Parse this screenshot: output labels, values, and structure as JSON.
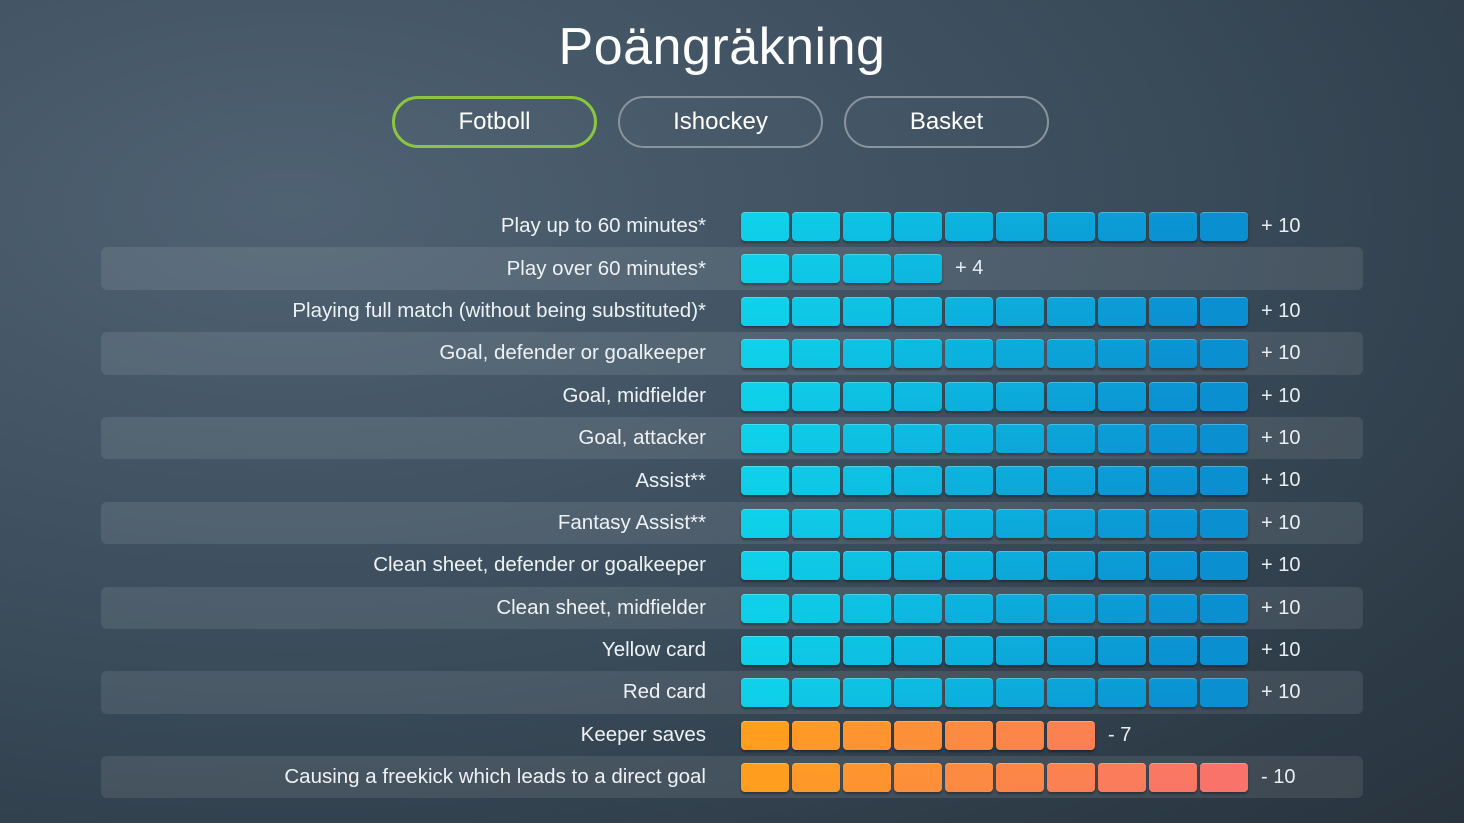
{
  "title": "Poängräkning",
  "tabs": [
    {
      "label": "Fotboll",
      "active": true
    },
    {
      "label": "Ishockey",
      "active": false
    },
    {
      "label": "Basket",
      "active": false
    }
  ],
  "colors": {
    "active_tab_border": "#8cc63f",
    "positive_start": "#0fd2ea",
    "positive_end": "#0a8fd1",
    "negative_start": "#ff9f1c",
    "negative_end": "#f9736a"
  },
  "max_segments": 10,
  "rows": [
    {
      "label": "Play up to 60 minutes*",
      "points": 10,
      "value_text": "+ 10"
    },
    {
      "label": "Play over 60 minutes*",
      "points": 4,
      "value_text": "+ 4"
    },
    {
      "label": "Playing full match (without being substituted)*",
      "points": 10,
      "value_text": "+ 10"
    },
    {
      "label": "Goal, defender or goalkeeper",
      "points": 10,
      "value_text": "+ 10"
    },
    {
      "label": "Goal, midfielder",
      "points": 10,
      "value_text": "+ 10"
    },
    {
      "label": "Goal, attacker",
      "points": 10,
      "value_text": "+ 10"
    },
    {
      "label": "Assist**",
      "points": 10,
      "value_text": "+ 10"
    },
    {
      "label": "Fantasy Assist**",
      "points": 10,
      "value_text": "+ 10"
    },
    {
      "label": "Clean sheet, defender or goalkeeper",
      "points": 10,
      "value_text": "+ 10"
    },
    {
      "label": "Clean sheet, midfielder",
      "points": 10,
      "value_text": "+ 10"
    },
    {
      "label": "Yellow card",
      "points": 10,
      "value_text": "+ 10"
    },
    {
      "label": "Red card",
      "points": 10,
      "value_text": "+ 10"
    },
    {
      "label": "Keeper saves",
      "points": -7,
      "value_text": "- 7"
    },
    {
      "label": "Causing a freekick which leads to a direct goal",
      "points": -10,
      "value_text": "- 10"
    }
  ]
}
